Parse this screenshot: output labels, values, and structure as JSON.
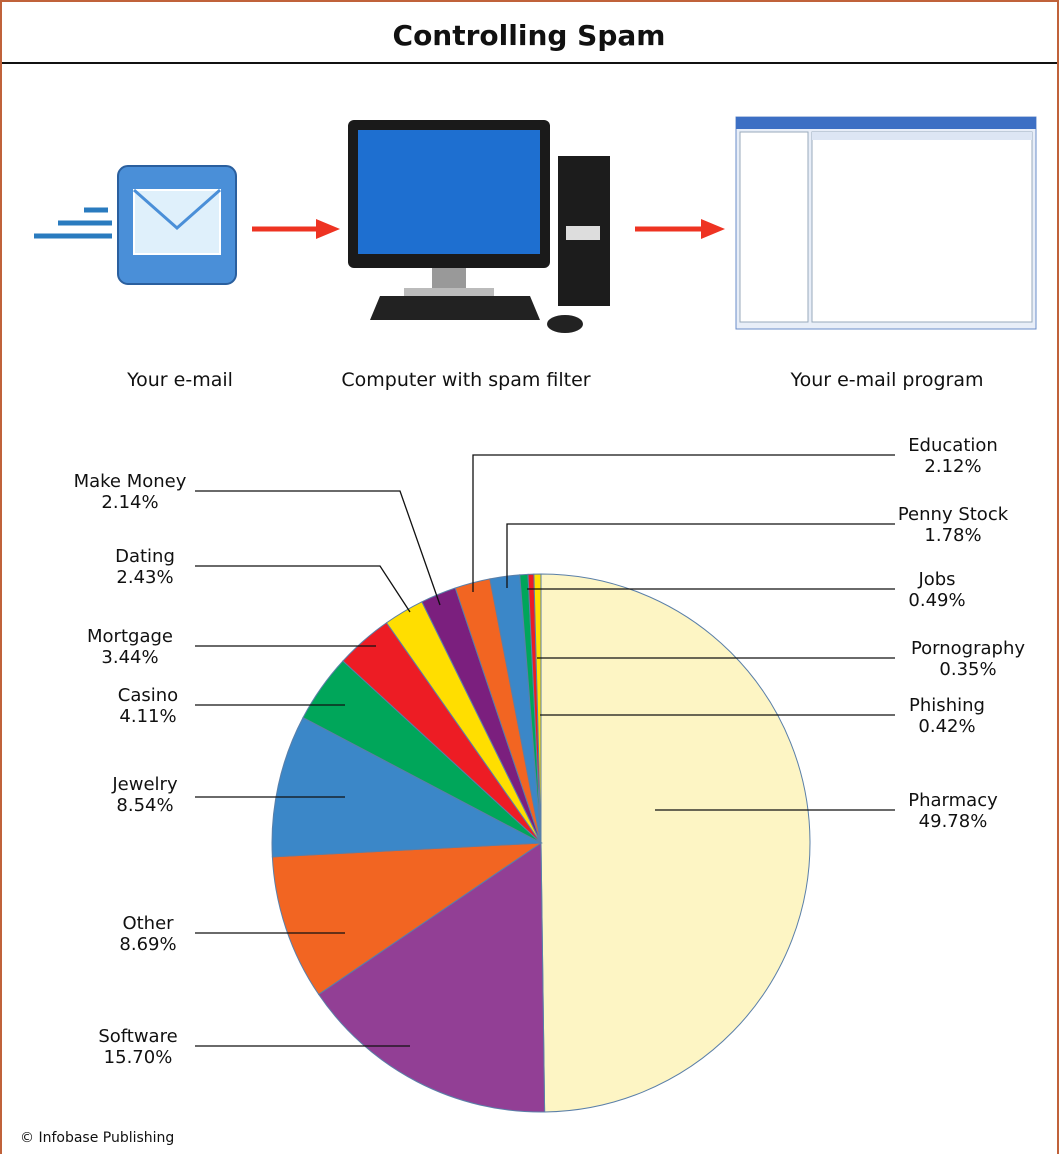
{
  "title": "Controlling Spam",
  "flow": {
    "steps": [
      "Your e-mail",
      "Computer with spam filter",
      "Your e-mail program"
    ]
  },
  "chart_data": {
    "type": "pie",
    "categories": [
      "Pharmacy",
      "Software",
      "Other",
      "Jewelry",
      "Casino",
      "Mortgage",
      "Dating",
      "Make Money",
      "Education",
      "Penny Stock",
      "Jobs",
      "Pornography",
      "Phishing"
    ],
    "values": [
      49.78,
      15.7,
      8.69,
      8.54,
      4.11,
      3.44,
      2.43,
      2.14,
      2.12,
      1.78,
      0.49,
      0.35,
      0.42
    ],
    "value_labels": [
      "49.78%",
      "15.70%",
      "8.69%",
      "8.54%",
      "4.11%",
      "3.44%",
      "2.43%",
      "2.14%",
      "2.12%",
      "1.78%",
      "0.49%",
      "0.35%",
      "0.42%"
    ],
    "colors": [
      "#fdf5c4",
      "#923f95",
      "#f26522",
      "#3b87c8",
      "#00a65a",
      "#ed1c24",
      "#ffde00",
      "#7b1f7e",
      "#f26522",
      "#3b87c8",
      "#00a65a",
      "#ed1c24",
      "#ffde00"
    ]
  },
  "credit": "© Infobase Publishing"
}
